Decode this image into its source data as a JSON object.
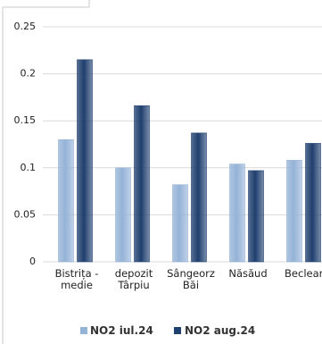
{
  "chart_data": {
    "type": "bar",
    "categories": [
      "Bistrița -\nmedie",
      "depozit\nTârpiu",
      "Sângeorz\nBăi",
      "Năsăud",
      "Beclean"
    ],
    "series": [
      {
        "name": "NO2 iul.24",
        "color": "#95b3d7",
        "values": [
          0.13,
          0.1,
          0.082,
          0.104,
          0.108
        ]
      },
      {
        "name": "NO2 aug.24",
        "color": "#1f3f6e",
        "values": [
          0.215,
          0.166,
          0.137,
          0.097,
          0.126
        ]
      }
    ],
    "ylim": [
      0,
      0.25
    ],
    "yticks": [
      0,
      0.05,
      0.1,
      0.15,
      0.2,
      0.25
    ],
    "grid": true,
    "legend": "bottom"
  }
}
